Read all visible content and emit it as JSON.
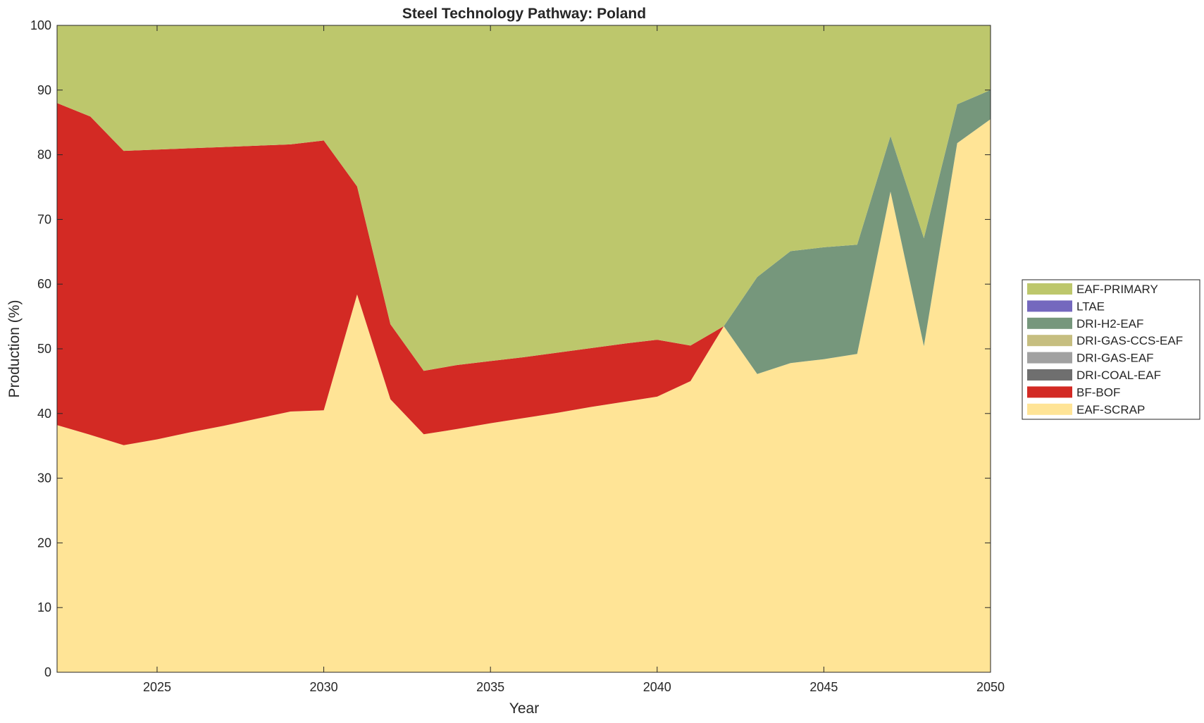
{
  "chart_data": {
    "type": "area",
    "stacked": true,
    "title": "Steel Technology Pathway: Poland",
    "xlabel": "Year",
    "ylabel": "Production (%)",
    "xlim": [
      2022,
      2050
    ],
    "ylim": [
      0,
      100
    ],
    "xticks": [
      2025,
      2030,
      2035,
      2040,
      2045,
      2050
    ],
    "yticks": [
      0,
      10,
      20,
      30,
      40,
      50,
      60,
      70,
      80,
      90,
      100
    ],
    "grid": false,
    "legend_position": "right",
    "x": [
      2022,
      2023,
      2024,
      2025,
      2026,
      2027,
      2028,
      2029,
      2030,
      2031,
      2032,
      2033,
      2034,
      2035,
      2036,
      2037,
      2038,
      2039,
      2040,
      2041,
      2042,
      2043,
      2044,
      2045,
      2046,
      2047,
      2048,
      2049,
      2050
    ],
    "series": [
      {
        "name": "EAF-SCRAP",
        "color": "#FFE496",
        "values": [
          38.2,
          36.7,
          35.1,
          36.0,
          37.1,
          38.1,
          39.2,
          40.3,
          40.5,
          58.4,
          42.2,
          36.8,
          37.6,
          38.5,
          39.3,
          40.1,
          41.0,
          41.8,
          42.6,
          45.0,
          53.5,
          46.1,
          47.8,
          48.4,
          49.2,
          74.3,
          50.4,
          81.8,
          85.5
        ]
      },
      {
        "name": "BF-BOF",
        "color": "#D32A24",
        "values": [
          49.8,
          49.2,
          45.5,
          44.8,
          43.9,
          43.1,
          42.2,
          41.3,
          41.7,
          16.7,
          11.6,
          9.8,
          9.9,
          9.6,
          9.4,
          9.3,
          9.1,
          9.0,
          8.8,
          5.5,
          0,
          0,
          0,
          0,
          0,
          0,
          0,
          0,
          0
        ]
      },
      {
        "name": "DRI-COAL-EAF",
        "color": "#6F6F6F",
        "values": [
          0,
          0,
          0,
          0,
          0,
          0,
          0,
          0,
          0,
          0,
          0,
          0,
          0,
          0,
          0,
          0,
          0,
          0,
          0,
          0,
          0,
          0,
          0,
          0,
          0,
          0,
          0,
          0,
          0
        ]
      },
      {
        "name": "DRI-GAS-EAF",
        "color": "#A1A1A1",
        "values": [
          0,
          0,
          0,
          0,
          0,
          0,
          0,
          0,
          0,
          0,
          0,
          0,
          0,
          0,
          0,
          0,
          0,
          0,
          0,
          0,
          0,
          0,
          0,
          0,
          0,
          0,
          0,
          0,
          0
        ]
      },
      {
        "name": "DRI-GAS-CCS-EAF",
        "color": "#C6BE80",
        "values": [
          0,
          0,
          0,
          0,
          0,
          0,
          0,
          0,
          0,
          0,
          0,
          0,
          0,
          0,
          0,
          0,
          0,
          0,
          0,
          0,
          0,
          0,
          0,
          0,
          0,
          0,
          0,
          0,
          0
        ]
      },
      {
        "name": "DRI-H2-EAF",
        "color": "#76977C",
        "values": [
          0,
          0,
          0,
          0,
          0,
          0,
          0,
          0,
          0,
          0,
          0,
          0,
          0,
          0,
          0,
          0,
          0,
          0,
          0,
          0,
          0,
          15.0,
          17.3,
          17.3,
          16.9,
          8.6,
          16.7,
          6.0,
          4.5
        ]
      },
      {
        "name": "LTAE",
        "color": "#7468BE",
        "values": [
          0,
          0,
          0,
          0,
          0,
          0,
          0,
          0,
          0,
          0,
          0,
          0,
          0,
          0,
          0,
          0,
          0,
          0,
          0,
          0,
          0,
          0,
          0,
          0,
          0,
          0,
          0,
          0,
          0
        ]
      },
      {
        "name": "EAF-PRIMARY",
        "color": "#BDC76C",
        "values": [
          12.0,
          14.1,
          19.4,
          19.2,
          19.0,
          18.8,
          18.6,
          18.4,
          17.8,
          24.9,
          46.2,
          53.4,
          52.5,
          51.9,
          51.3,
          50.6,
          49.9,
          49.2,
          48.6,
          49.5,
          46.5,
          38.9,
          34.9,
          34.3,
          33.9,
          17.1,
          32.9,
          12.2,
          10.0
        ]
      }
    ]
  }
}
